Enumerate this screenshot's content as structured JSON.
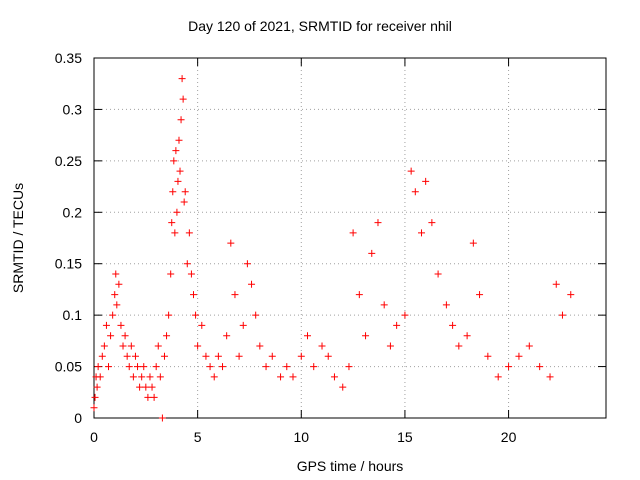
{
  "chart_data": {
    "type": "scatter",
    "title": "Day 120 of 2021, SRMTID for receiver nhil",
    "xlabel": "GPS time / hours",
    "ylabel": "SRMTID / TECUs",
    "xlim": [
      0,
      24.7
    ],
    "ylim": [
      0,
      0.35
    ],
    "xticks": [
      0,
      5,
      10,
      15,
      20
    ],
    "yticks": [
      0,
      0.05,
      0.1,
      0.15,
      0.2,
      0.25,
      0.3,
      0.35
    ],
    "grid": true,
    "marker": "+",
    "series": [
      {
        "name": "SRMTID",
        "color": "#ff0000",
        "points": [
          [
            0.0,
            0.01
          ],
          [
            0.05,
            0.02
          ],
          [
            0.1,
            0.04
          ],
          [
            0.15,
            0.03
          ],
          [
            0.2,
            0.05
          ],
          [
            0.3,
            0.04
          ],
          [
            0.4,
            0.06
          ],
          [
            0.5,
            0.07
          ],
          [
            0.6,
            0.09
          ],
          [
            0.7,
            0.05
          ],
          [
            0.8,
            0.08
          ],
          [
            0.9,
            0.1
          ],
          [
            1.0,
            0.12
          ],
          [
            1.05,
            0.14
          ],
          [
            1.1,
            0.11
          ],
          [
            1.2,
            0.13
          ],
          [
            1.3,
            0.09
          ],
          [
            1.4,
            0.07
          ],
          [
            1.5,
            0.08
          ],
          [
            1.6,
            0.06
          ],
          [
            1.7,
            0.05
          ],
          [
            1.8,
            0.07
          ],
          [
            1.9,
            0.04
          ],
          [
            2.0,
            0.06
          ],
          [
            2.1,
            0.05
          ],
          [
            2.2,
            0.03
          ],
          [
            2.3,
            0.04
          ],
          [
            2.4,
            0.05
          ],
          [
            2.5,
            0.03
          ],
          [
            2.6,
            0.02
          ],
          [
            2.7,
            0.04
          ],
          [
            2.8,
            0.03
          ],
          [
            2.9,
            0.02
          ],
          [
            3.0,
            0.05
          ],
          [
            3.1,
            0.07
          ],
          [
            3.2,
            0.04
          ],
          [
            3.3,
            0.0
          ],
          [
            3.4,
            0.06
          ],
          [
            3.5,
            0.08
          ],
          [
            3.6,
            0.1
          ],
          [
            3.7,
            0.14
          ],
          [
            3.75,
            0.19
          ],
          [
            3.8,
            0.22
          ],
          [
            3.85,
            0.25
          ],
          [
            3.9,
            0.18
          ],
          [
            3.95,
            0.26
          ],
          [
            4.0,
            0.2
          ],
          [
            4.05,
            0.23
          ],
          [
            4.1,
            0.27
          ],
          [
            4.15,
            0.24
          ],
          [
            4.2,
            0.29
          ],
          [
            4.25,
            0.33
          ],
          [
            4.3,
            0.31
          ],
          [
            4.35,
            0.21
          ],
          [
            4.4,
            0.22
          ],
          [
            4.5,
            0.15
          ],
          [
            4.6,
            0.18
          ],
          [
            4.7,
            0.14
          ],
          [
            4.8,
            0.12
          ],
          [
            4.9,
            0.1
          ],
          [
            5.0,
            0.07
          ],
          [
            5.2,
            0.09
          ],
          [
            5.4,
            0.06
          ],
          [
            5.6,
            0.05
          ],
          [
            5.8,
            0.04
          ],
          [
            6.0,
            0.06
          ],
          [
            6.2,
            0.05
          ],
          [
            6.4,
            0.08
          ],
          [
            6.6,
            0.17
          ],
          [
            6.8,
            0.12
          ],
          [
            7.0,
            0.06
          ],
          [
            7.2,
            0.09
          ],
          [
            7.4,
            0.15
          ],
          [
            7.6,
            0.13
          ],
          [
            7.8,
            0.1
          ],
          [
            8.0,
            0.07
          ],
          [
            8.3,
            0.05
          ],
          [
            8.6,
            0.06
          ],
          [
            9.0,
            0.04
          ],
          [
            9.3,
            0.05
          ],
          [
            9.6,
            0.04
          ],
          [
            10.0,
            0.06
          ],
          [
            10.3,
            0.08
          ],
          [
            10.6,
            0.05
          ],
          [
            11.0,
            0.07
          ],
          [
            11.3,
            0.06
          ],
          [
            11.6,
            0.04
          ],
          [
            12.0,
            0.03
          ],
          [
            12.3,
            0.05
          ],
          [
            12.5,
            0.18
          ],
          [
            12.8,
            0.12
          ],
          [
            13.1,
            0.08
          ],
          [
            13.4,
            0.16
          ],
          [
            13.7,
            0.19
          ],
          [
            14.0,
            0.11
          ],
          [
            14.3,
            0.07
          ],
          [
            14.6,
            0.09
          ],
          [
            15.0,
            0.1
          ],
          [
            15.3,
            0.24
          ],
          [
            15.5,
            0.22
          ],
          [
            15.8,
            0.18
          ],
          [
            16.0,
            0.23
          ],
          [
            16.3,
            0.19
          ],
          [
            16.6,
            0.14
          ],
          [
            17.0,
            0.11
          ],
          [
            17.3,
            0.09
          ],
          [
            17.6,
            0.07
          ],
          [
            18.0,
            0.08
          ],
          [
            18.3,
            0.17
          ],
          [
            18.6,
            0.12
          ],
          [
            19.0,
            0.06
          ],
          [
            19.5,
            0.04
          ],
          [
            20.0,
            0.05
          ],
          [
            20.5,
            0.06
          ],
          [
            21.0,
            0.07
          ],
          [
            21.5,
            0.05
          ],
          [
            22.0,
            0.04
          ],
          [
            22.3,
            0.13
          ],
          [
            22.6,
            0.1
          ],
          [
            23.0,
            0.12
          ]
        ]
      }
    ]
  }
}
